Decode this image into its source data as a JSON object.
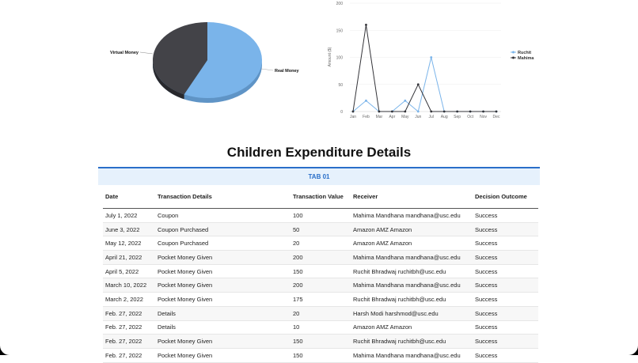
{
  "pie_chart": {
    "slices": [
      {
        "label": "Real Money",
        "value": 57,
        "color": "#7ab4ea"
      },
      {
        "label": "Virtual Money",
        "value": 43,
        "color": "#434348"
      }
    ]
  },
  "line_chart": {
    "ylabel": "Amount ($)",
    "yticks": [
      0,
      50,
      100,
      150,
      200
    ],
    "ylim": [
      0,
      200
    ],
    "months": [
      "Jan",
      "Feb",
      "Mar",
      "Apr",
      "May",
      "Jun",
      "Jul",
      "Aug",
      "Sep",
      "Oct",
      "Nov",
      "Dec"
    ],
    "series": [
      {
        "name": "Ruchit",
        "color": "#7ab4ea",
        "values": [
          0,
          20,
          0,
          0,
          20,
          0,
          100,
          0,
          0,
          0,
          0,
          0
        ]
      },
      {
        "name": "Mahima",
        "color": "#333338",
        "values": [
          0,
          160,
          0,
          0,
          0,
          50,
          0,
          0,
          0,
          0,
          0,
          0
        ]
      }
    ]
  },
  "title": "Children Expenditure Details",
  "tab_label": "TAB 01",
  "table": {
    "headers": [
      "Date",
      "Transaction Details",
      "Transaction Value",
      "Receiver",
      "Decision Outcome"
    ],
    "rows": [
      [
        "July 1, 2022",
        "Coupon",
        "100",
        "Mahima Mandhana mandhana@usc.edu",
        "Success"
      ],
      [
        "June 3, 2022",
        "Coupon Purchased",
        "50",
        "Amazon AMZ Amazon",
        "Success"
      ],
      [
        "May 12, 2022",
        "Coupon Purchased",
        "20",
        "Amazon AMZ Amazon",
        "Success"
      ],
      [
        "April 21, 2022",
        "Pocket Money Given",
        "200",
        "Mahima Mandhana mandhana@usc.edu",
        "Success"
      ],
      [
        "April 5, 2022",
        "Pocket Money Given",
        "150",
        "Ruchit Bhradwaj ruchitbh@usc.edu",
        "Success"
      ],
      [
        "March 10, 2022",
        "Pocket Money Given",
        "200",
        "Mahima Mandhana mandhana@usc.edu",
        "Success"
      ],
      [
        "March 2, 2022",
        "Pocket Money Given",
        "175",
        "Ruchit Bhradwaj ruchitbh@usc.edu",
        "Success"
      ],
      [
        "Feb. 27, 2022",
        "Details",
        "20",
        "Harsh Modi harshmod@usc.edu",
        "Success"
      ],
      [
        "Feb. 27, 2022",
        "Details",
        "10",
        "Amazon AMZ Amazon",
        "Success"
      ],
      [
        "Feb. 27, 2022",
        "Pocket Money Given",
        "150",
        "Ruchit Bhradwaj ruchitbh@usc.edu",
        "Success"
      ],
      [
        "Feb. 27, 2022",
        "Pocket Money Given",
        "150",
        "Mahima Mandhana mandhana@usc.edu",
        "Success"
      ]
    ]
  }
}
